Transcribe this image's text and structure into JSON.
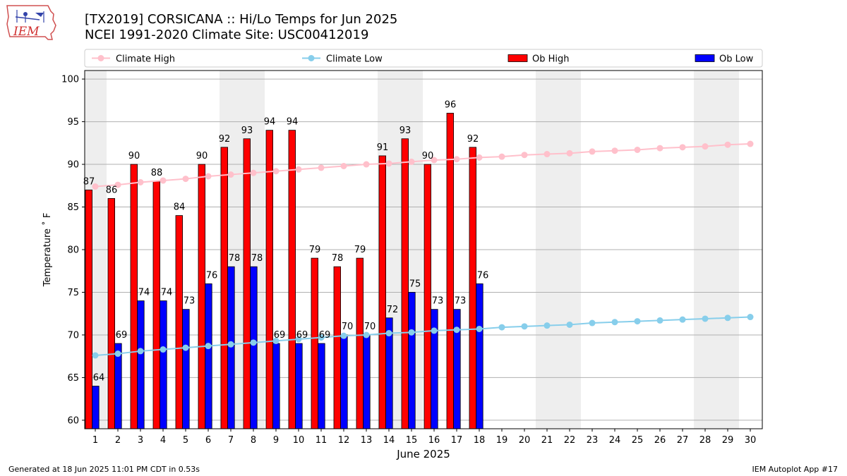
{
  "header": {
    "title_line1": "[TX2019] CORSICANA :: Hi/Lo Temps for Jun 2025",
    "title_line2": "NCEI 1991-2020 Climate Site: USC00412019",
    "logo_text": "IEM"
  },
  "footer": {
    "left": "Generated at 18 Jun 2025 11:01 PM CDT in 0.53s",
    "right": "IEM Autoplot App #17"
  },
  "colors": {
    "ob_high": "#ff0000",
    "ob_low": "#0000ff",
    "climate_high": "#ffc0cb",
    "climate_low": "#87ceeb",
    "weekend_shade": "#eeeeee",
    "grid": "#b0b0b0"
  },
  "chart_data": {
    "type": "bar",
    "title": "[TX2019] CORSICANA :: Hi/Lo Temps for Jun 2025",
    "subtitle": "NCEI 1991-2020 Climate Site: USC00412019",
    "xlabel": "June 2025",
    "ylabel": "Temperature $^\\circ$F",
    "ylim": [
      59,
      101
    ],
    "yticks": [
      60,
      65,
      70,
      75,
      80,
      85,
      90,
      95,
      100
    ],
    "grid": true,
    "legend_position": "top",
    "categories": [
      "1",
      "2",
      "3",
      "4",
      "5",
      "6",
      "7",
      "8",
      "9",
      "10",
      "11",
      "12",
      "13",
      "14",
      "15",
      "16",
      "17",
      "18",
      "19",
      "20",
      "21",
      "22",
      "23",
      "24",
      "25",
      "26",
      "27",
      "28",
      "29",
      "30"
    ],
    "shaded_days": [
      1,
      7,
      8,
      14,
      15,
      21,
      22,
      28,
      29
    ],
    "series": [
      {
        "name": "Climate High",
        "kind": "line",
        "color": "#ffc0cb",
        "values": [
          87.4,
          87.6,
          87.9,
          88.1,
          88.3,
          88.6,
          88.8,
          89.0,
          89.2,
          89.4,
          89.6,
          89.8,
          90.0,
          90.1,
          90.3,
          90.5,
          90.6,
          90.8,
          90.9,
          91.1,
          91.2,
          91.3,
          91.5,
          91.6,
          91.7,
          91.9,
          92.0,
          92.1,
          92.3,
          92.4
        ]
      },
      {
        "name": "Climate Low",
        "kind": "line",
        "color": "#87ceeb",
        "values": [
          67.6,
          67.8,
          68.1,
          68.3,
          68.5,
          68.7,
          68.9,
          69.1,
          69.3,
          69.5,
          69.7,
          69.9,
          70.0,
          70.2,
          70.3,
          70.5,
          70.6,
          70.7,
          70.9,
          71.0,
          71.1,
          71.2,
          71.4,
          71.5,
          71.6,
          71.7,
          71.8,
          71.9,
          72.0,
          72.1
        ]
      },
      {
        "name": "Ob High",
        "kind": "bar",
        "color": "#ff0000",
        "values": [
          87,
          86,
          90,
          88,
          84,
          90,
          92,
          93,
          94,
          94,
          79,
          78,
          79,
          91,
          93,
          90,
          96,
          92,
          null,
          null,
          null,
          null,
          null,
          null,
          null,
          null,
          null,
          null,
          null,
          null
        ]
      },
      {
        "name": "Ob Low",
        "kind": "bar",
        "color": "#0000ff",
        "values": [
          64,
          69,
          74,
          74,
          73,
          76,
          78,
          78,
          69,
          69,
          69,
          70,
          70,
          72,
          75,
          73,
          73,
          76,
          null,
          null,
          null,
          null,
          null,
          null,
          null,
          null,
          null,
          null,
          null,
          null
        ]
      }
    ]
  }
}
